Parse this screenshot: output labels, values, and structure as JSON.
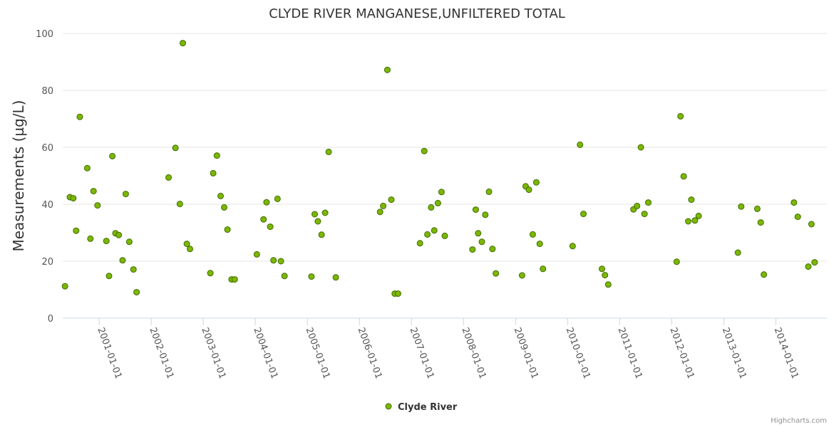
{
  "chart_data": {
    "type": "scatter",
    "title": "CLYDE RIVER MANGANESE,UNFILTERED TOTAL",
    "ylabel": "Measurements (µg/L)",
    "xlabel": "",
    "ylim": [
      0,
      100
    ],
    "xlim": [
      "2000-04-20",
      "2014-12-25"
    ],
    "yticks": [
      0,
      20,
      40,
      60,
      80,
      100
    ],
    "xticks": [
      "2001-01-01",
      "2002-01-01",
      "2003-01-01",
      "2004-01-01",
      "2005-01-01",
      "2006-01-01",
      "2007-01-01",
      "2008-01-01",
      "2009-01-01",
      "2010-01-01",
      "2011-01-01",
      "2012-01-01",
      "2013-01-01",
      "2014-01-01"
    ],
    "grid": true,
    "legend_position": "bottom-center",
    "colors": {
      "marker_fill": "#7cb700",
      "marker_stroke": "#3f6b00",
      "grid": "#e6e6e6",
      "axis": "#ccd6eb"
    },
    "series": [
      {
        "name": "Clyde River",
        "points": [
          [
            "2000-05-06",
            11.2
          ],
          [
            "2000-06-09",
            42.5
          ],
          [
            "2000-07-03",
            42.1
          ],
          [
            "2000-07-23",
            30.7
          ],
          [
            "2000-08-18",
            70.7
          ],
          [
            "2000-10-09",
            52.7
          ],
          [
            "2000-10-31",
            27.9
          ],
          [
            "2000-11-22",
            44.6
          ],
          [
            "2000-12-20",
            39.6
          ],
          [
            "2001-02-20",
            27.1
          ],
          [
            "2001-03-11",
            14.8
          ],
          [
            "2001-04-03",
            56.9
          ],
          [
            "2001-04-25",
            29.8
          ],
          [
            "2001-05-18",
            29.2
          ],
          [
            "2001-06-14",
            20.3
          ],
          [
            "2001-07-06",
            43.6
          ],
          [
            "2001-07-31",
            26.8
          ],
          [
            "2001-08-29",
            17.1
          ],
          [
            "2001-09-20",
            9.1
          ],
          [
            "2002-05-03",
            49.4
          ],
          [
            "2002-06-20",
            59.8
          ],
          [
            "2002-07-21",
            40.1
          ],
          [
            "2002-08-11",
            96.6
          ],
          [
            "2002-09-08",
            26.1
          ],
          [
            "2002-09-30",
            24.3
          ],
          [
            "2003-02-20",
            15.8
          ],
          [
            "2003-03-12",
            50.9
          ],
          [
            "2003-04-07",
            57.1
          ],
          [
            "2003-05-03",
            42.9
          ],
          [
            "2003-05-28",
            38.9
          ],
          [
            "2003-06-20",
            31.1
          ],
          [
            "2003-07-19",
            13.6
          ],
          [
            "2003-08-10",
            13.6
          ],
          [
            "2004-01-12",
            22.4
          ],
          [
            "2004-02-28",
            34.7
          ],
          [
            "2004-03-20",
            40.7
          ],
          [
            "2004-04-15",
            32.1
          ],
          [
            "2004-05-08",
            20.3
          ],
          [
            "2004-06-05",
            41.9
          ],
          [
            "2004-06-29",
            20.0
          ],
          [
            "2004-07-24",
            14.8
          ],
          [
            "2005-01-29",
            14.6
          ],
          [
            "2005-02-21",
            36.5
          ],
          [
            "2005-03-15",
            34.0
          ],
          [
            "2005-04-10",
            29.3
          ],
          [
            "2005-05-05",
            37.0
          ],
          [
            "2005-05-30",
            58.4
          ],
          [
            "2005-07-19",
            14.3
          ],
          [
            "2006-05-26",
            37.3
          ],
          [
            "2006-06-17",
            39.4
          ],
          [
            "2006-07-16",
            87.2
          ],
          [
            "2006-08-13",
            41.6
          ],
          [
            "2006-09-06",
            8.6
          ],
          [
            "2006-09-29",
            8.6
          ],
          [
            "2007-03-02",
            26.3
          ],
          [
            "2007-04-01",
            58.7
          ],
          [
            "2007-04-23",
            29.4
          ],
          [
            "2007-05-19",
            38.9
          ],
          [
            "2007-06-10",
            30.8
          ],
          [
            "2007-07-06",
            40.4
          ],
          [
            "2007-07-31",
            44.3
          ],
          [
            "2007-08-23",
            28.9
          ],
          [
            "2008-03-04",
            24.1
          ],
          [
            "2008-03-27",
            38.1
          ],
          [
            "2008-04-13",
            29.8
          ],
          [
            "2008-05-09",
            26.8
          ],
          [
            "2008-06-02",
            36.3
          ],
          [
            "2008-06-28",
            44.4
          ],
          [
            "2008-07-22",
            24.3
          ],
          [
            "2008-08-15",
            15.7
          ],
          [
            "2009-02-15",
            15.0
          ],
          [
            "2009-03-12",
            46.3
          ],
          [
            "2009-04-04",
            45.1
          ],
          [
            "2009-05-01",
            29.4
          ],
          [
            "2009-05-26",
            47.7
          ],
          [
            "2009-06-19",
            26.1
          ],
          [
            "2009-07-12",
            17.3
          ],
          [
            "2010-02-05",
            25.3
          ],
          [
            "2010-03-29",
            60.9
          ],
          [
            "2010-04-22",
            36.6
          ],
          [
            "2010-08-30",
            17.3
          ],
          [
            "2010-09-20",
            15.1
          ],
          [
            "2010-10-13",
            11.8
          ],
          [
            "2011-04-08",
            38.2
          ],
          [
            "2011-05-03",
            39.4
          ],
          [
            "2011-05-30",
            60.0
          ],
          [
            "2011-06-24",
            36.6
          ],
          [
            "2011-07-21",
            40.6
          ],
          [
            "2012-02-05",
            19.8
          ],
          [
            "2012-03-03",
            70.9
          ],
          [
            "2012-03-25",
            49.8
          ],
          [
            "2012-04-26",
            34.0
          ],
          [
            "2012-05-18",
            41.6
          ],
          [
            "2012-06-12",
            34.3
          ],
          [
            "2012-07-08",
            35.9
          ],
          [
            "2013-04-10",
            23.0
          ],
          [
            "2013-05-03",
            39.2
          ],
          [
            "2013-08-24",
            38.4
          ],
          [
            "2013-09-17",
            33.6
          ],
          [
            "2013-10-09",
            15.3
          ],
          [
            "2014-05-08",
            40.6
          ],
          [
            "2014-06-04",
            35.6
          ],
          [
            "2014-08-17",
            18.1
          ],
          [
            "2014-09-08",
            33.0
          ],
          [
            "2014-09-30",
            19.6
          ]
        ]
      }
    ]
  },
  "credits": "Highcharts.com"
}
